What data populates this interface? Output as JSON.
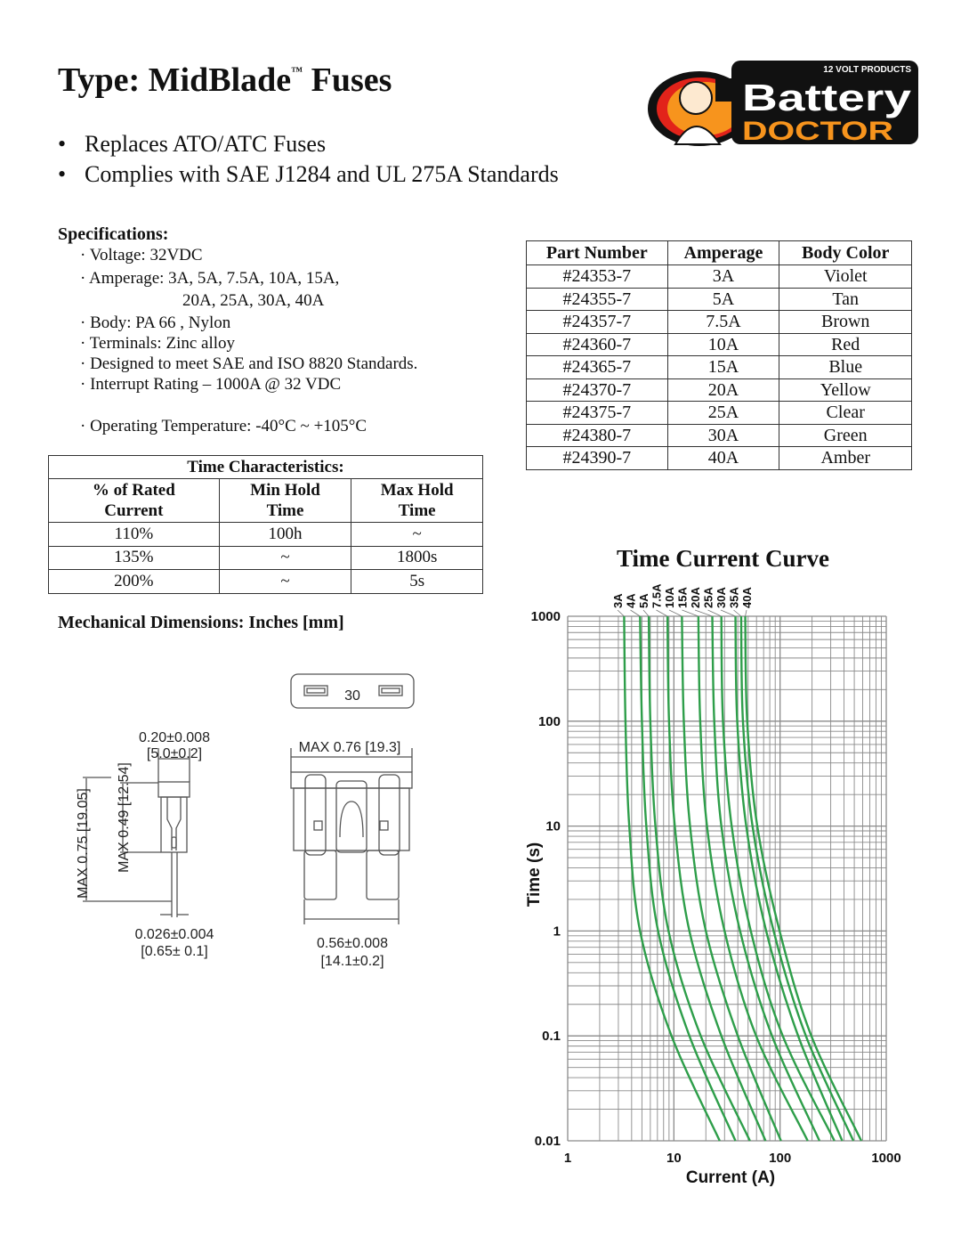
{
  "header": {
    "title_pre": "Type: MidBlade",
    "title_tm": "™",
    "title_post": " Fuses",
    "bullets": [
      "Replaces ATO/ATC Fuses",
      "Complies with SAE J1284 and UL 275A Standards"
    ]
  },
  "logo": {
    "tagline": "12 VOLT PRODUCTS",
    "word1": "Battery",
    "word2": "DOCTOR",
    "colors": {
      "orange": "#f7941d",
      "red": "#e2231a",
      "black": "#111111"
    }
  },
  "specifications": {
    "heading": "Specifications:",
    "items": [
      "· Voltage: 32VDC",
      "· Amperage: 3A, 5A, 7.5A, 10A, 15A,",
      "20A, 25A, 30A, 40A",
      "· Body: PA 66 , Nylon",
      "· Terminals: Zinc alloy",
      "· Designed to meet SAE and ISO 8820 Standards.",
      "· Interrupt Rating – 1000A @ 32 VDC",
      "· Operating Temperature: -40°C  ~  +105°C"
    ]
  },
  "parts_table": {
    "headers": [
      "Part Number",
      "Amperage",
      "Body Color"
    ],
    "rows": [
      [
        "#24353-7",
        "3A",
        "Violet"
      ],
      [
        "#24355-7",
        "5A",
        "Tan"
      ],
      [
        "#24357-7",
        "7.5A",
        "Brown"
      ],
      [
        "#24360-7",
        "10A",
        "Red"
      ],
      [
        "#24365-7",
        "15A",
        "Blue"
      ],
      [
        "#24370-7",
        "20A",
        "Yellow"
      ],
      [
        "#24375-7",
        "25A",
        "Clear"
      ],
      [
        "#24380-7",
        "30A",
        "Green"
      ],
      [
        "#24390-7",
        "40A",
        "Amber"
      ]
    ]
  },
  "time_table": {
    "title": "Time Characteristics:",
    "headers": [
      "% of Rated Current",
      "Min Hold Time",
      "Max Hold Time"
    ],
    "rows": [
      [
        "110%",
        "100h",
        "~"
      ],
      [
        "135%",
        "~",
        "1800s"
      ],
      [
        "200%",
        "~",
        "5s"
      ]
    ]
  },
  "mechanical": {
    "heading": "Mechanical Dimensions:  Inches [mm]",
    "top_label": "30",
    "side": {
      "width_in": "0.20±0.008",
      "width_mm": "[5.0±0.2]",
      "height_body": "MAX  0.49 [12.54]",
      "height_total": "MAX  0.75 [19.05]",
      "blade_in": "0.026±0.004",
      "blade_mm": "[0.65± 0.1]"
    },
    "front": {
      "max_width": "MAX  0.76 [19.3]",
      "blade_span_in": "0.56±0.008",
      "blade_span_mm": "[14.1±0.2]"
    }
  },
  "chart_data": {
    "type": "line",
    "title": "Time Current Curve",
    "xlabel": "Current (A)",
    "ylabel": "Time (s)",
    "xscale": "log",
    "yscale": "log",
    "xlim": [
      1,
      1000
    ],
    "ylim": [
      0.01,
      1000
    ],
    "xticks": [
      "1",
      "10",
      "100",
      "1000"
    ],
    "yticks": [
      "1000",
      "100",
      "10",
      "1",
      "0.1",
      "0.01"
    ],
    "grid": true,
    "line_color": "#2e9e4a",
    "time_points": [
      1000,
      100,
      10,
      1,
      0.1,
      0.01
    ],
    "series": [
      {
        "name": "3A",
        "current": [
          3.4,
          3.5,
          3.8,
          4.8,
          9.5,
          27
        ]
      },
      {
        "name": "4A",
        "current": [
          4.8,
          5.0,
          5.5,
          7.1,
          14,
          38
        ]
      },
      {
        "name": "5A",
        "current": [
          5.8,
          6.0,
          6.7,
          8.9,
          17.9,
          52
        ]
      },
      {
        "name": "7.5A",
        "current": [
          8.7,
          9.0,
          10.2,
          14,
          28,
          73
        ]
      },
      {
        "name": "10A",
        "current": [
          11.9,
          12.4,
          14.2,
          20,
          40,
          102
        ]
      },
      {
        "name": "15A",
        "current": [
          17,
          17.7,
          20.5,
          30,
          59.5,
          182
        ]
      },
      {
        "name": "20A",
        "current": [
          23,
          24,
          28,
          42,
          84,
          235
        ]
      },
      {
        "name": "25A",
        "current": [
          28,
          29,
          35,
          53,
          106,
          325
        ]
      },
      {
        "name": "30A",
        "current": [
          38,
          39.5,
          48,
          74,
          148,
          385
        ]
      },
      {
        "name": "35A",
        "current": [
          43,
          44.7,
          55,
          87,
          175,
          490
        ]
      },
      {
        "name": "40A",
        "current": [
          47,
          49,
          61,
          99,
          197,
          582
        ]
      }
    ]
  }
}
